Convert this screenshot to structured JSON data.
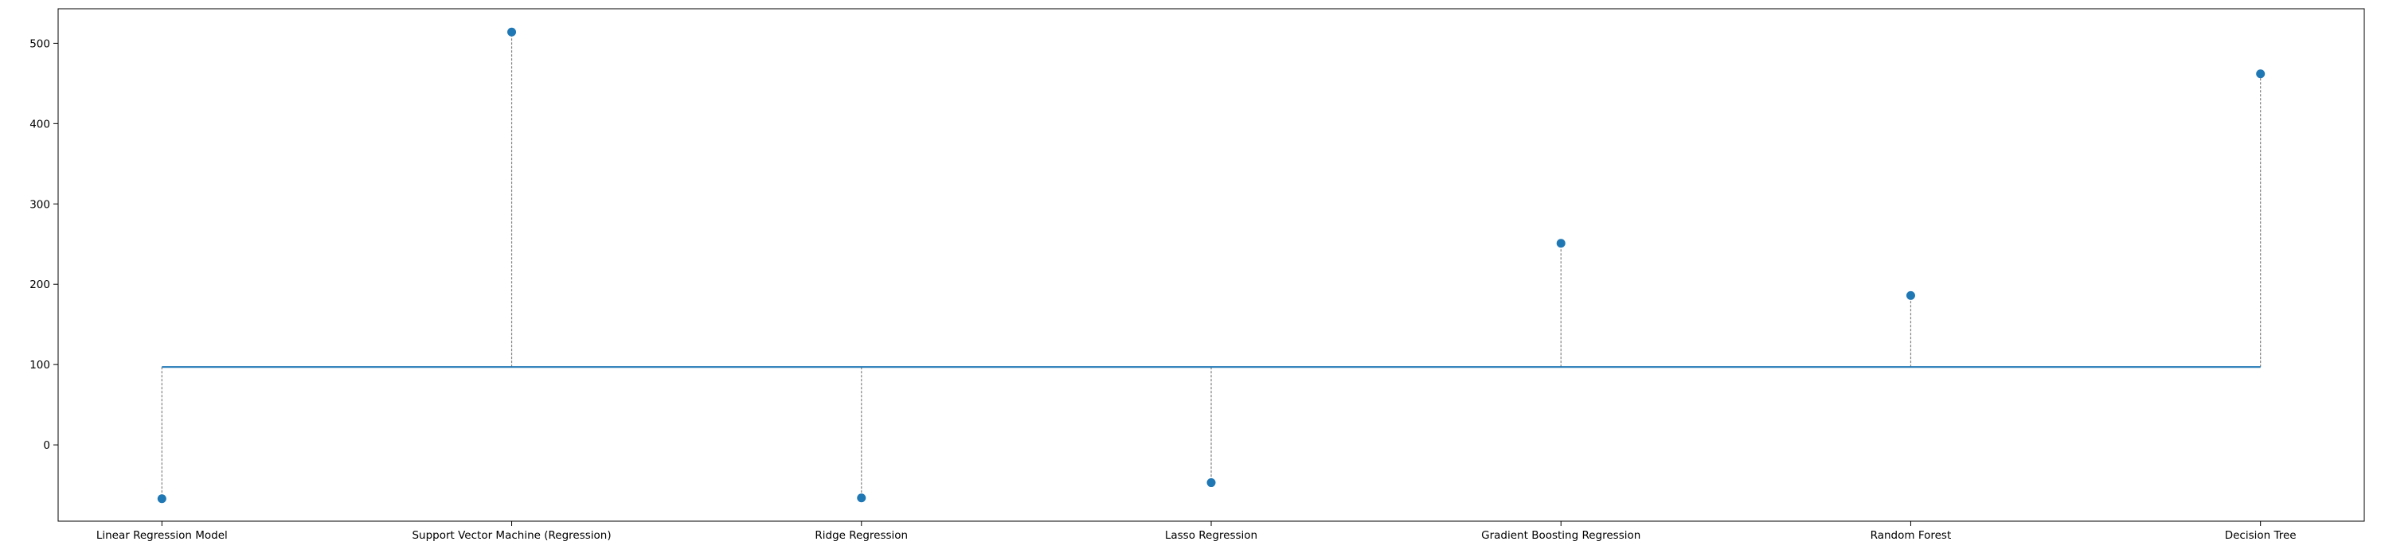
{
  "chart_data": {
    "type": "lollipop",
    "categories": [
      "Linear Regression Model",
      "Support Vector Machine (Regression)",
      "Ridge Regression",
      "Lasso Regression",
      "Gradient Boosting Regression",
      "Random Forest",
      "Decision Tree"
    ],
    "values": [
      -67,
      514,
      -66,
      -47,
      251,
      186,
      462
    ],
    "baseline": 97,
    "ylim": [
      -95,
      543
    ],
    "yticks": [
      0,
      100,
      200,
      300,
      400,
      500
    ],
    "ytick_labels": [
      "0",
      "100",
      "200",
      "300",
      "400",
      "500"
    ],
    "title": "",
    "xlabel": "",
    "ylabel": "",
    "grid": false,
    "colors": {
      "marker": "#1f77b4",
      "baseline": "#1f77b4",
      "stem": "#808080",
      "axis": "#000000"
    }
  }
}
